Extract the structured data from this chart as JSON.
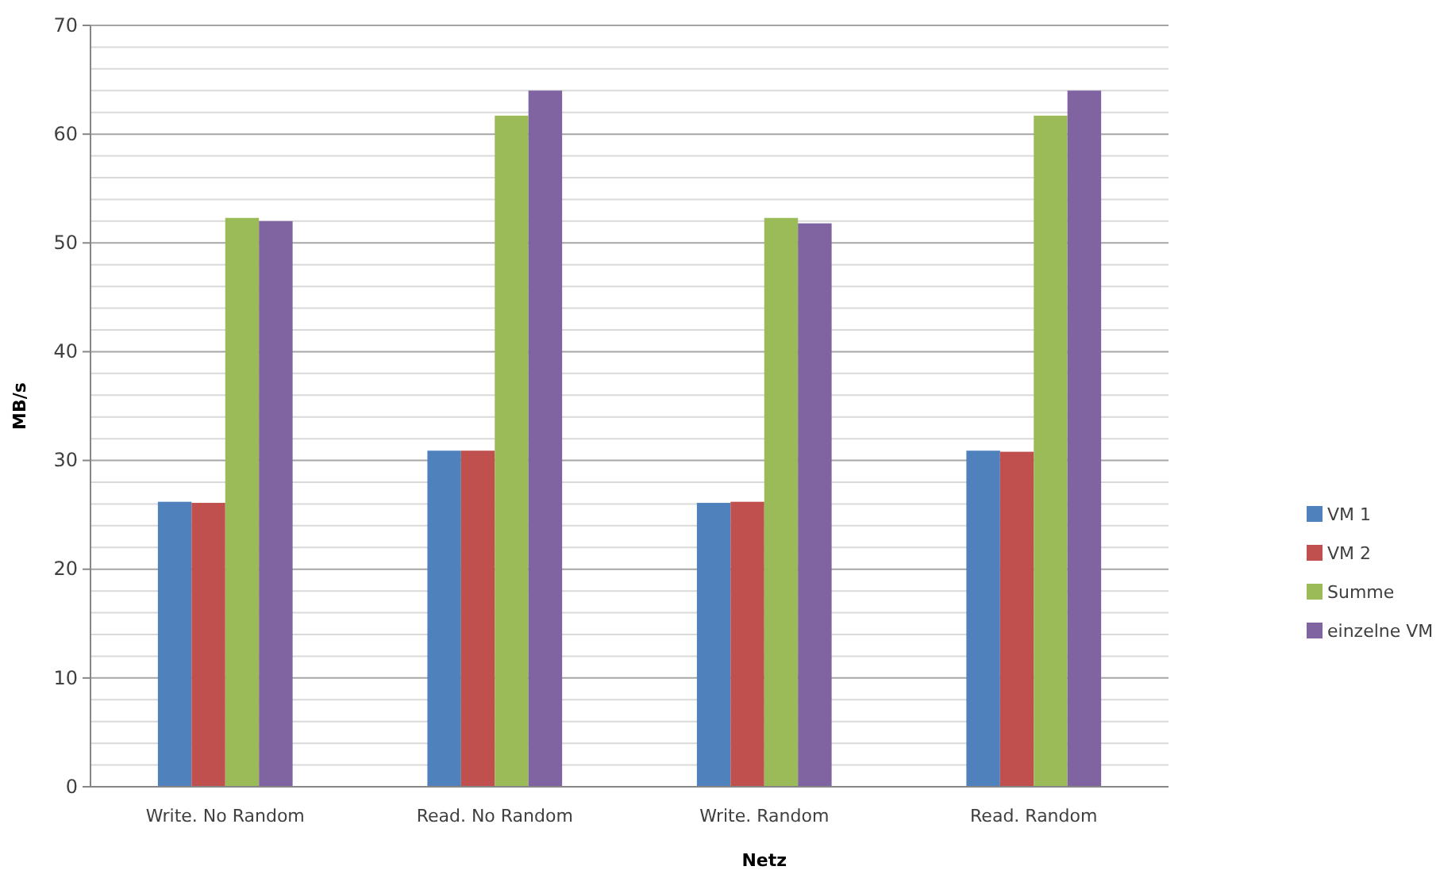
{
  "chart_data": {
    "type": "bar",
    "xlabel": "Netz",
    "ylabel": "MB/s",
    "categories": [
      "Write. No Random",
      "Read. No Random",
      "Write. Random",
      "Read. Random"
    ],
    "series": [
      {
        "name": "VM 1",
        "color": "#4f81bd",
        "values": [
          26.2,
          30.9,
          26.1,
          30.9
        ]
      },
      {
        "name": "VM 2",
        "color": "#c0504d",
        "values": [
          26.1,
          30.9,
          26.2,
          30.8
        ]
      },
      {
        "name": "Summe",
        "color": "#9bbb59",
        "values": [
          52.3,
          61.7,
          52.3,
          61.7
        ]
      },
      {
        "name": "einzelne VM",
        "color": "#8064a2",
        "values": [
          52.0,
          64.0,
          51.8,
          64.0
        ]
      }
    ],
    "ylim": [
      0,
      70
    ],
    "yticks": [
      0,
      {
        "value": 2,
        "label": null
      },
      {
        "value": 4,
        "label": null
      },
      {
        "value": 6,
        "label": null
      },
      {
        "value": 8,
        "label": null
      },
      10,
      {
        "value": 12,
        "label": null
      },
      {
        "value": 14,
        "label": null
      },
      {
        "value": 16,
        "label": null
      },
      {
        "value": 18,
        "label": null
      },
      20,
      {
        "value": 22,
        "label": null
      },
      {
        "value": 24,
        "label": null
      },
      {
        "value": 26,
        "label": null
      },
      {
        "value": 28,
        "label": null
      },
      30,
      {
        "value": 32,
        "label": null
      },
      {
        "value": 34,
        "label": null
      },
      {
        "value": 36,
        "label": null
      },
      {
        "value": 38,
        "label": null
      },
      40,
      {
        "value": 42,
        "label": null
      },
      {
        "value": 44,
        "label": null
      },
      {
        "value": 46,
        "label": null
      },
      {
        "value": 48,
        "label": null
      },
      50,
      {
        "value": 52,
        "label": null
      },
      {
        "value": 54,
        "label": null
      },
      {
        "value": 56,
        "label": null
      },
      {
        "value": 58,
        "label": null
      },
      60,
      {
        "value": 62,
        "label": null
      },
      {
        "value": 64,
        "label": null
      },
      {
        "value": 66,
        "label": null
      },
      {
        "value": 68,
        "label": null
      },
      70
    ],
    "grid": true,
    "legend": "right"
  }
}
